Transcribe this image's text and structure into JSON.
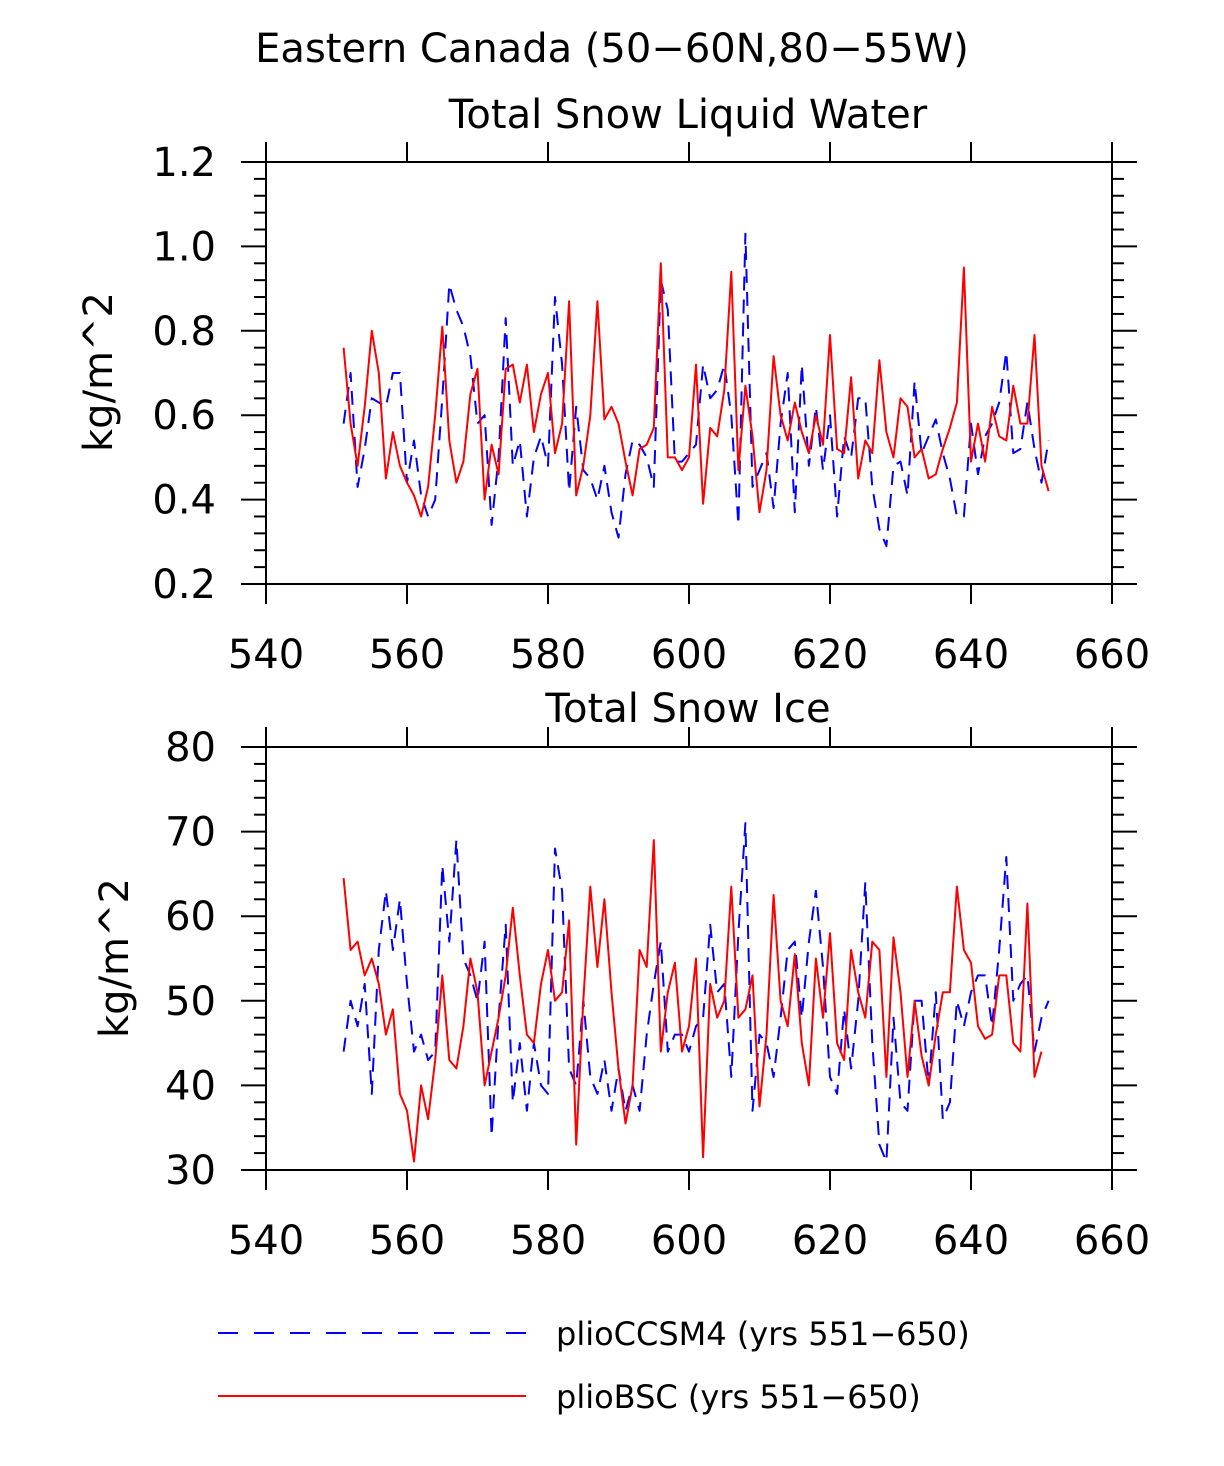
{
  "page_title": "Eastern Canada (50−60N,80−55W)",
  "legend": {
    "entries": [
      {
        "label": "plioCCSM4 (yrs 551−650)",
        "color": "#0000ff",
        "style": "dashed"
      },
      {
        "label": "plioBSC (yrs 551−650)",
        "color": "#ff0000",
        "style": "solid"
      }
    ]
  },
  "chart_data": [
    {
      "type": "line",
      "title": "Total Snow Liquid Water",
      "xlabel": "",
      "ylabel": "kg/m^2",
      "xlim": [
        540,
        660
      ],
      "ylim": [
        0.2,
        1.2
      ],
      "x_ticks": [
        540,
        560,
        580,
        600,
        620,
        640,
        660
      ],
      "y_ticks": [
        0.2,
        0.4,
        0.6,
        0.8,
        1.0,
        1.2
      ],
      "x_tick_labels": [
        "540",
        "560",
        "580",
        "600",
        "620",
        "640",
        "660"
      ],
      "y_tick_labels": [
        "0.2",
        "0.4",
        "0.6",
        "0.8",
        "1.0",
        "1.2"
      ],
      "x_start": 551,
      "series": [
        {
          "name": "plioCCSM4 (yrs 551−650)",
          "color": "#0000ff",
          "style": "dashed",
          "values": [
            0.58,
            0.7,
            0.43,
            0.52,
            0.64,
            0.63,
            0.62,
            0.7,
            0.7,
            0.44,
            0.54,
            0.41,
            0.36,
            0.4,
            0.64,
            0.91,
            0.85,
            0.81,
            0.74,
            0.58,
            0.6,
            0.34,
            0.5,
            0.83,
            0.48,
            0.54,
            0.36,
            0.5,
            0.55,
            0.48,
            0.88,
            0.72,
            0.42,
            0.62,
            0.47,
            0.45,
            0.4,
            0.48,
            0.37,
            0.31,
            0.46,
            0.54,
            0.53,
            0.5,
            0.43,
            0.92,
            0.85,
            0.49,
            0.49,
            0.51,
            0.53,
            0.72,
            0.64,
            0.66,
            0.72,
            0.6,
            0.34,
            1.03,
            0.43,
            0.47,
            0.51,
            0.38,
            0.58,
            0.7,
            0.37,
            0.72,
            0.48,
            0.62,
            0.47,
            0.6,
            0.36,
            0.55,
            0.5,
            0.64,
            0.64,
            0.43,
            0.33,
            0.29,
            0.48,
            0.49,
            0.41,
            0.68,
            0.51,
            0.55,
            0.59,
            0.51,
            0.45,
            0.36,
            0.36,
            0.58,
            0.46,
            0.55,
            0.58,
            0.63,
            0.75,
            0.51,
            0.52,
            0.63,
            0.52,
            0.44,
            0.54
          ]
        },
        {
          "name": "plioBSC (yrs 551−650)",
          "color": "#ff0000",
          "style": "solid",
          "values": [
            0.76,
            0.58,
            0.48,
            0.62,
            0.8,
            0.7,
            0.45,
            0.56,
            0.48,
            0.44,
            0.41,
            0.36,
            0.43,
            0.6,
            0.81,
            0.54,
            0.44,
            0.49,
            0.65,
            0.71,
            0.4,
            0.53,
            0.46,
            0.71,
            0.72,
            0.63,
            0.72,
            0.56,
            0.65,
            0.7,
            0.51,
            0.58,
            0.87,
            0.41,
            0.48,
            0.6,
            0.87,
            0.59,
            0.62,
            0.58,
            0.49,
            0.41,
            0.52,
            0.53,
            0.57,
            0.96,
            0.5,
            0.5,
            0.47,
            0.5,
            0.72,
            0.39,
            0.57,
            0.55,
            0.66,
            0.94,
            0.47,
            0.67,
            0.55,
            0.37,
            0.47,
            0.74,
            0.6,
            0.54,
            0.63,
            0.56,
            0.51,
            0.6,
            0.53,
            0.79,
            0.52,
            0.51,
            0.69,
            0.45,
            0.54,
            0.51,
            0.73,
            0.56,
            0.5,
            0.64,
            0.62,
            0.5,
            0.52,
            0.45,
            0.46,
            0.52,
            0.57,
            0.63,
            0.95,
            0.49,
            0.58,
            0.49,
            0.62,
            0.55,
            0.54,
            0.67,
            0.58,
            0.58,
            0.79,
            0.48,
            0.42
          ]
        }
      ]
    },
    {
      "type": "line",
      "title": "Total Snow Ice",
      "xlabel": "",
      "ylabel": "kg/m^2",
      "xlim": [
        540,
        660
      ],
      "ylim": [
        30,
        80
      ],
      "x_ticks": [
        540,
        560,
        580,
        600,
        620,
        640,
        660
      ],
      "y_ticks": [
        30,
        40,
        50,
        60,
        70,
        80
      ],
      "x_tick_labels": [
        "540",
        "560",
        "580",
        "600",
        "620",
        "640",
        "660"
      ],
      "y_tick_labels": [
        "30",
        "40",
        "50",
        "60",
        "70",
        "80"
      ],
      "x_start": 551,
      "series": [
        {
          "name": "plioCCSM4 (yrs 551−650)",
          "color": "#0000ff",
          "style": "dashed",
          "values": [
            44,
            50,
            47,
            52,
            39,
            56,
            63,
            56,
            62,
            52,
            44,
            46,
            43,
            44,
            66,
            57,
            69,
            55,
            53,
            50,
            57,
            34,
            48,
            59,
            38,
            45,
            37,
            45,
            40,
            39,
            68,
            63,
            42,
            40,
            50,
            41,
            39,
            43,
            37,
            42,
            37,
            40,
            37,
            46,
            52,
            57,
            44,
            46,
            46,
            44,
            47,
            48,
            59,
            51,
            52,
            41,
            58,
            71,
            37,
            46,
            45,
            41,
            48,
            56,
            57,
            48,
            57,
            63,
            54,
            41,
            39,
            49,
            42,
            50,
            64,
            45,
            33,
            31,
            48,
            38,
            37,
            50,
            50,
            40,
            51,
            36,
            38,
            50,
            47,
            51,
            53,
            53,
            47,
            56,
            67,
            50,
            52,
            53,
            44,
            48,
            50
          ]
        },
        {
          "name": "plioBSC (yrs 551−650)",
          "color": "#ff0000",
          "style": "solid",
          "values": [
            64.5,
            56,
            57,
            53,
            55,
            52,
            46,
            49,
            39,
            37,
            31,
            40,
            36,
            43,
            53,
            43,
            42,
            47,
            55,
            51,
            40,
            44,
            48,
            53,
            61,
            53,
            46,
            45,
            52,
            56,
            50,
            51,
            59.5,
            33,
            50,
            63.5,
            54,
            62,
            51,
            42,
            35.5,
            40,
            56,
            54,
            69,
            44,
            51,
            54.5,
            44,
            47,
            55,
            31.5,
            52,
            48,
            50,
            63.5,
            48,
            49,
            53,
            37.5,
            46,
            62.5,
            50,
            47,
            55.5,
            45,
            40,
            55,
            48,
            58,
            45,
            43,
            56,
            51,
            48,
            57,
            56,
            41,
            57.5,
            51,
            41,
            50,
            43.5,
            40,
            46,
            51,
            51,
            63.5,
            56,
            54.5,
            47,
            45.5,
            46,
            53,
            53,
            45,
            44,
            61.5,
            41,
            44
          ]
        }
      ]
    }
  ]
}
